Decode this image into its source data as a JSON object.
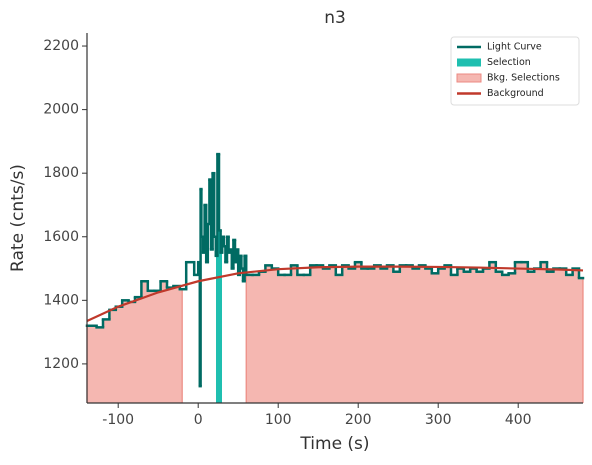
{
  "chart_data": {
    "type": "step",
    "title": "n3",
    "x_label": "Time (s)",
    "y_label": "Rate (cnts/s)",
    "xlim": [
      -139,
      481
    ],
    "ylim": [
      1077,
      2241
    ],
    "xticks": [
      -100,
      0,
      100,
      200,
      300,
      400
    ],
    "yticks": [
      1200,
      1400,
      1600,
      1800,
      2000,
      2200
    ],
    "legend": "upper right",
    "series": [
      {
        "name": "Light Curve",
        "color": "#006b63",
        "x": [
          -139,
          -127,
          -119,
          -111,
          -103,
          -95,
          -87,
          -79,
          -71,
          -63,
          -55,
          -47,
          -39,
          -31,
          -23,
          -15,
          -5,
          0,
          2,
          3,
          4,
          6,
          8,
          10,
          12,
          14,
          16,
          18,
          20,
          22,
          24,
          26,
          28,
          30,
          32,
          34,
          36,
          38,
          40,
          42,
          44,
          46,
          48,
          50,
          52,
          54,
          56,
          58,
          60,
          68,
          76,
          84,
          92,
          100,
          108,
          116,
          124,
          132,
          140,
          148,
          156,
          164,
          172,
          180,
          188,
          196,
          204,
          212,
          220,
          228,
          236,
          244,
          252,
          260,
          268,
          276,
          284,
          292,
          300,
          308,
          316,
          324,
          332,
          340,
          348,
          356,
          364,
          372,
          380,
          388,
          396,
          404,
          412,
          420,
          428,
          436,
          444,
          452,
          460,
          468,
          476
        ],
        "values": [
          1320,
          1315,
          1340,
          1370,
          1380,
          1400,
          1395,
          1410,
          1460,
          1430,
          1430,
          1460,
          1440,
          1445,
          1435,
          1520,
          1480,
          1520,
          1130,
          1750,
          1600,
          1550,
          1700,
          1520,
          1640,
          1780,
          1560,
          1800,
          1600,
          1540,
          1860,
          1620,
          1550,
          1600,
          1570,
          1520,
          1600,
          1550,
          1560,
          1500,
          1590,
          1520,
          1560,
          1480,
          1540,
          1500,
          1460,
          1540,
          1480,
          1480,
          1490,
          1510,
          1500,
          1480,
          1480,
          1510,
          1480,
          1480,
          1510,
          1510,
          1500,
          1510,
          1480,
          1510,
          1500,
          1520,
          1500,
          1500,
          1510,
          1500,
          1510,
          1490,
          1510,
          1510,
          1500,
          1510,
          1500,
          1485,
          1500,
          1510,
          1480,
          1500,
          1490,
          1500,
          1490,
          1500,
          1520,
          1490,
          1480,
          1485,
          1520,
          1520,
          1490,
          1500,
          1520,
          1490,
          1500,
          1500,
          1480,
          1500,
          1470
        ]
      },
      {
        "name": "Selection",
        "color": "#1fbfb0",
        "intervals": [
          [
            22,
            29
          ]
        ]
      },
      {
        "name": "Bkg. Selections",
        "color": "#f5b7b1",
        "edge": "#ec8a82",
        "intervals": [
          [
            -139,
            -20
          ],
          [
            60,
            481
          ]
        ]
      },
      {
        "name": "Background",
        "color": "#c0392b",
        "x": [
          -139,
          -100,
          -50,
          0,
          50,
          100,
          150,
          200,
          250,
          300,
          350,
          400,
          450,
          481
        ],
        "values": [
          1335,
          1380,
          1425,
          1460,
          1485,
          1498,
          1504,
          1506,
          1506,
          1505,
          1503,
          1500,
          1497,
          1494
        ]
      }
    ]
  }
}
